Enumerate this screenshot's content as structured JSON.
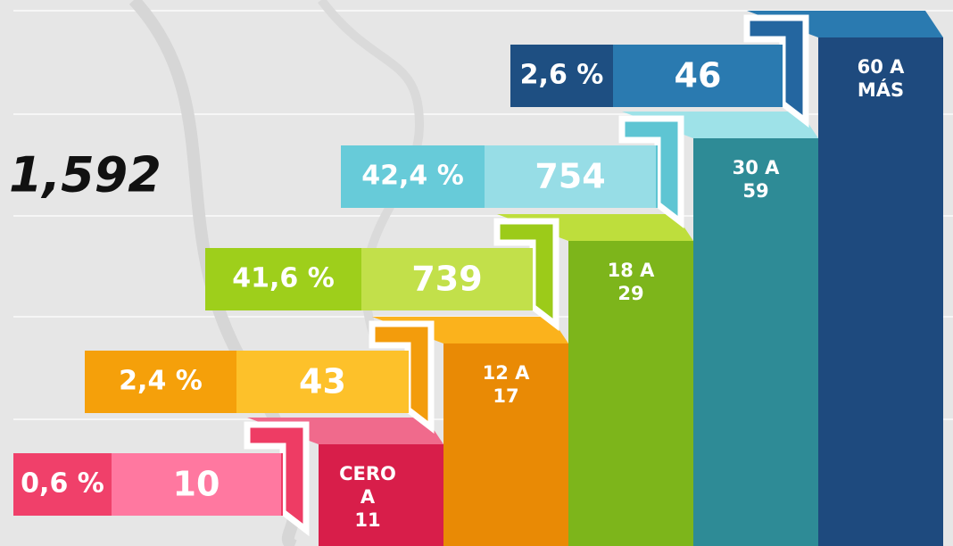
{
  "total": "1,592",
  "groups": [
    {
      "label": [
        "CERO",
        "A",
        "11"
      ],
      "percent": "0,6 %",
      "count": "10"
    },
    {
      "label": [
        "12 A",
        "17"
      ],
      "percent": "2,4 %",
      "count": "43"
    },
    {
      "label": [
        "18 A",
        "29"
      ],
      "percent": "41,6 %",
      "count": "739"
    },
    {
      "label": [
        "30 A",
        "59"
      ],
      "percent": "42,4 %",
      "count": "754"
    },
    {
      "label": [
        "60 A",
        "MÁS"
      ],
      "percent": "2,6 %",
      "count": "46"
    }
  ]
}
